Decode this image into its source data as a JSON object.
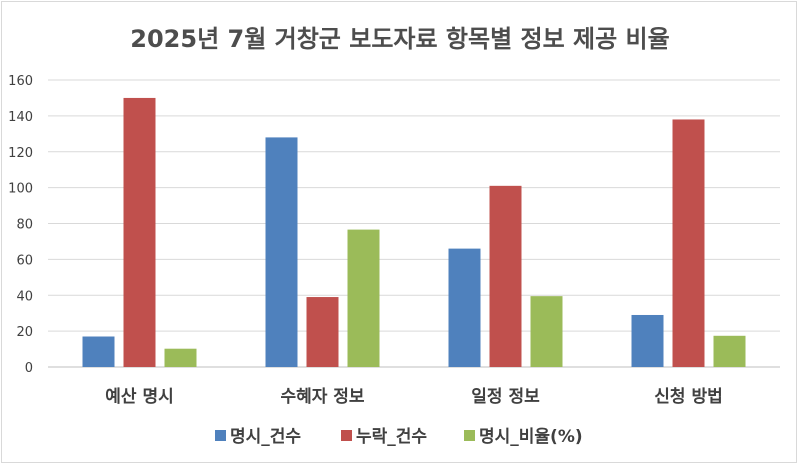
{
  "chart_data": {
    "type": "bar",
    "title": "2025년 7월 거창군 보도자료 항목별 정보 제공 비율",
    "categories": [
      "예산 명시",
      "수혜자 정보",
      "일정 정보",
      "신청 방법"
    ],
    "series": [
      {
        "name": "명시_건수",
        "values": [
          17,
          128,
          66,
          29
        ],
        "color": "#4f81bd"
      },
      {
        "name": "누락_건수",
        "values": [
          150,
          39,
          101,
          138
        ],
        "color": "#c0504d"
      },
      {
        "name": "명시_비율(%)",
        "values": [
          10.2,
          76.6,
          39.5,
          17.4
        ],
        "color": "#9bbb59"
      }
    ],
    "ylim": [
      0,
      160
    ],
    "yticks": [
      0,
      20,
      40,
      60,
      80,
      100,
      120,
      140,
      160
    ],
    "grid": true,
    "legend_position": "bottom"
  }
}
